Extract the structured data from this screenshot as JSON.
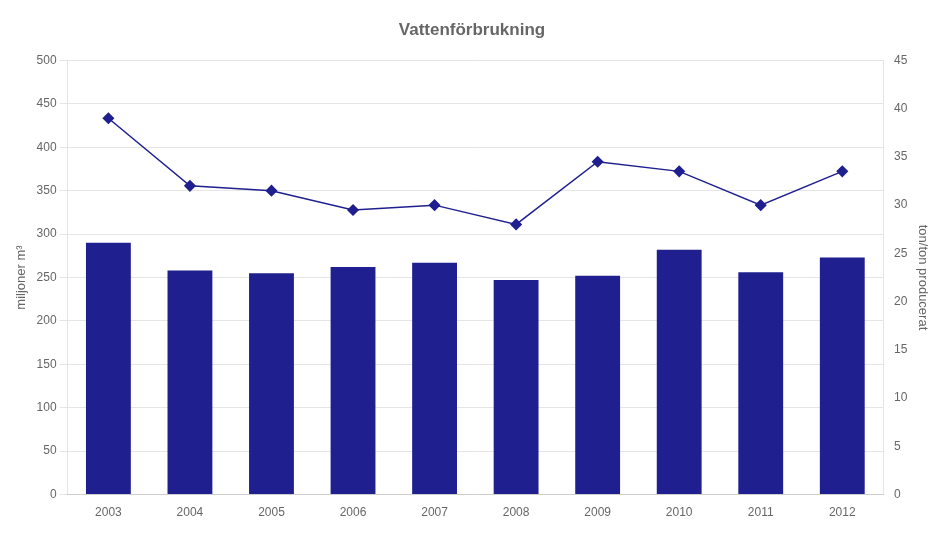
{
  "chart_data": {
    "type": "bar",
    "title": "Vattenförbrukning",
    "categories": [
      "2003",
      "2004",
      "2005",
      "2006",
      "2007",
      "2008",
      "2009",
      "2010",
      "2011",
      "2012"
    ],
    "series": [
      {
        "type": "bar",
        "color": "#1F1F8F",
        "values": [
          290,
          258,
          255,
          262,
          267,
          247,
          252,
          282,
          256,
          273
        ]
      },
      {
        "type": "line",
        "color": "#1F1F8F",
        "marker": "diamond",
        "line_style": "solid",
        "axis": "y2",
        "values": [
          39.0,
          32.0,
          31.5,
          29.5,
          30.0,
          28.0,
          34.5,
          33.5,
          30.0,
          33.5
        ]
      }
    ],
    "ylabel": "miljoner m³",
    "y2label": "ton/ton producerat",
    "ylim": [
      0,
      500
    ],
    "yticks": [
      0,
      50,
      100,
      150,
      200,
      250,
      300,
      350,
      400,
      450,
      500
    ],
    "y2lim": [
      0,
      45
    ],
    "y2ticks": [
      0,
      5,
      10,
      15,
      20,
      25,
      30,
      35,
      40,
      45
    ],
    "grid": true
  }
}
